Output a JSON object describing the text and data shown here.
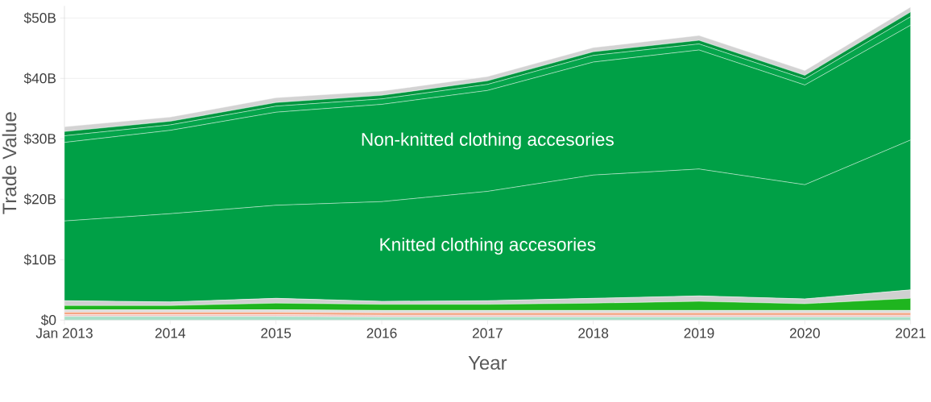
{
  "chart_data": {
    "type": "area",
    "stacked": true,
    "xlabel": "Year",
    "ylabel": "Trade Value",
    "x": [
      "2013",
      "2014",
      "2015",
      "2016",
      "2017",
      "2018",
      "2019",
      "2020",
      "2021"
    ],
    "xlim": [
      "2013",
      "2021"
    ],
    "xticks": [
      {
        "value": "2013",
        "label": "Jan 2013"
      },
      "2014",
      "2015",
      "2016",
      "2017",
      "2018",
      "2019",
      "2020",
      "2021"
    ],
    "ylim": [
      0,
      52
    ],
    "yticks": [
      {
        "value": 0,
        "label": "$0"
      },
      {
        "value": 10,
        "label": "$10B"
      },
      {
        "value": 20,
        "label": "$20B"
      },
      {
        "value": 30,
        "label": "$30B"
      },
      {
        "value": 40,
        "label": "$40B"
      },
      {
        "value": 50,
        "label": "$50B"
      }
    ],
    "grid": "y",
    "series": [
      {
        "color": "#a8e0c8",
        "values": [
          0.6,
          0.6,
          0.6,
          0.5,
          0.5,
          0.5,
          0.5,
          0.5,
          0.5
        ]
      },
      {
        "color": "#f2c4c4",
        "values": [
          0.3,
          0.3,
          0.3,
          0.3,
          0.3,
          0.3,
          0.3,
          0.3,
          0.3
        ]
      },
      {
        "color": "#f4a582",
        "values": [
          0.4,
          0.4,
          0.4,
          0.4,
          0.4,
          0.4,
          0.4,
          0.4,
          0.4
        ]
      },
      {
        "color": "#dcdcdc",
        "values": [
          0.4,
          0.4,
          0.4,
          0.4,
          0.4,
          0.4,
          0.4,
          0.4,
          0.4
        ]
      },
      {
        "color": "#1fb51f",
        "values": [
          0.7,
          0.7,
          1.1,
          1.0,
          1.0,
          1.2,
          1.5,
          1.1,
          2.0
        ]
      },
      {
        "color": "#d0d0d0",
        "values": [
          0.8,
          0.6,
          0.8,
          0.5,
          0.6,
          0.8,
          0.9,
          0.8,
          1.4
        ]
      },
      {
        "name": "Knitted clothing accesories",
        "color": "#00a046",
        "values": [
          13.2,
          14.6,
          15.4,
          16.5,
          18.1,
          20.4,
          21.0,
          18.9,
          24.8
        ]
      },
      {
        "name": "Non-knitted clothing accesories",
        "color": "#00a046",
        "values": [
          13.0,
          13.8,
          15.4,
          16.1,
          16.7,
          18.7,
          19.7,
          16.5,
          19.0
        ]
      },
      {
        "color": "#05a54b",
        "values": [
          1.1,
          0.9,
          1.0,
          0.9,
          1.0,
          1.1,
          1.0,
          1.0,
          1.4
        ]
      },
      {
        "color": "#00963f",
        "values": [
          0.7,
          0.6,
          0.6,
          0.6,
          0.6,
          0.6,
          0.6,
          0.6,
          0.8
        ]
      },
      {
        "color": "#d3d3d3",
        "values": [
          0.8,
          0.7,
          0.8,
          0.7,
          0.7,
          0.7,
          0.8,
          0.8,
          0.8
        ]
      }
    ]
  }
}
